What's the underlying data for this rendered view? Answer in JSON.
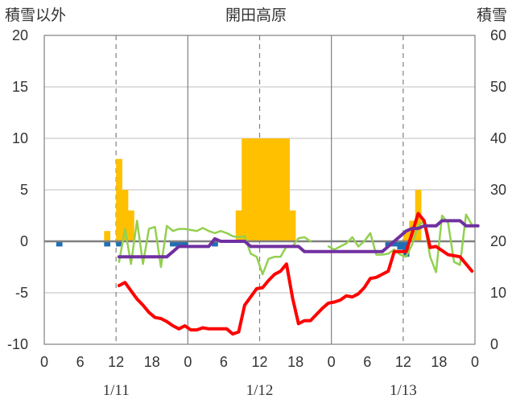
{
  "chart_data": {
    "type": "bar+line",
    "title": "開田高原",
    "left_axis": {
      "label": "積雪以外",
      "ylim": [
        -10,
        20
      ],
      "ticks": [
        "20",
        "15",
        "10",
        "5",
        "0",
        "-5",
        "-10"
      ]
    },
    "right_axis": {
      "label": "積雪",
      "ylim": [
        0,
        60
      ],
      "ticks": [
        "60",
        "50",
        "40",
        "30",
        "20",
        "10",
        "0"
      ]
    },
    "x_axis": {
      "hour_ticks": [
        "0",
        "6",
        "12",
        "18",
        "0",
        "6",
        "12",
        "18",
        "0",
        "6",
        "12",
        "18",
        "0"
      ],
      "date_labels": [
        {
          "text": "1/11",
          "hour": 12
        },
        {
          "text": "1/12",
          "hour": 36
        },
        {
          "text": "1/13",
          "hour": 60
        }
      ],
      "range_hours": [
        0,
        72
      ],
      "solid_lines_hours": [
        24,
        48
      ],
      "dashed_lines_hours": [
        12,
        36,
        60
      ]
    },
    "series": [
      {
        "kind": "bar",
        "axis": "left",
        "color": "#ffc000",
        "points": [
          [
            10,
            1
          ],
          [
            12,
            8
          ],
          [
            13,
            5
          ],
          [
            14,
            3
          ],
          [
            32,
            3
          ],
          [
            33,
            10
          ],
          [
            34,
            10
          ],
          [
            35,
            10
          ],
          [
            36,
            10
          ],
          [
            37,
            10
          ],
          [
            38,
            10
          ],
          [
            39,
            10
          ],
          [
            40,
            10
          ],
          [
            41,
            3
          ],
          [
            60,
            1
          ],
          [
            61,
            2
          ],
          [
            62,
            5
          ]
        ]
      },
      {
        "kind": "bar",
        "axis": "left",
        "color": "#1f6fb5",
        "points": [
          [
            2,
            -0.5
          ],
          [
            10,
            -0.5
          ],
          [
            12,
            -0.5
          ],
          [
            21,
            -0.5
          ],
          [
            22,
            -0.5
          ],
          [
            23,
            -0.5
          ],
          [
            28,
            -0.5
          ],
          [
            57,
            -0.5
          ],
          [
            58,
            -0.5
          ],
          [
            59,
            -0.8
          ],
          [
            60,
            -1.5
          ]
        ]
      },
      {
        "kind": "line",
        "axis": "left",
        "color": "#92d050",
        "width": 2.5,
        "points": [
          [
            12,
            -2
          ],
          [
            13,
            1.2
          ],
          [
            14,
            -2.2
          ],
          [
            15,
            2
          ],
          [
            16,
            -2.2
          ],
          [
            17,
            1.2
          ],
          [
            18,
            1.4
          ],
          [
            19,
            -2.5
          ],
          [
            20,
            1.5
          ],
          [
            21,
            1
          ],
          [
            22,
            1.2
          ],
          [
            23,
            1.2
          ],
          [
            24,
            1.1
          ],
          [
            25,
            1
          ],
          [
            26,
            1.3
          ],
          [
            27,
            1
          ],
          [
            28,
            0.8
          ],
          [
            29,
            1
          ],
          [
            30,
            0.8
          ],
          [
            31,
            0.5
          ],
          [
            32,
            0.4
          ],
          [
            33,
            0.5
          ],
          [
            34,
            -1.2
          ],
          [
            35,
            -1.5
          ],
          [
            36,
            -3.2
          ],
          [
            37,
            -1.7
          ],
          [
            38,
            -1.5
          ],
          [
            39,
            -1.5
          ],
          [
            40,
            -0.5
          ],
          [
            41,
            -0.5
          ],
          [
            42,
            0.3
          ],
          [
            43,
            0.4
          ],
          [
            44,
            0
          ],
          null,
          [
            47,
            -0.5
          ],
          [
            48,
            -0.8
          ],
          [
            49,
            -0.5
          ],
          [
            50,
            -0.2
          ],
          [
            51,
            0.4
          ],
          [
            52,
            -0.5
          ],
          [
            53,
            0
          ],
          [
            54,
            0.8
          ],
          [
            55,
            -1.3
          ],
          [
            56,
            -1.3
          ],
          [
            57,
            -1.2
          ],
          [
            58,
            -0.8
          ],
          [
            59,
            -1.3
          ],
          [
            60,
            -1.5
          ],
          [
            61,
            -0.3
          ],
          [
            62,
            1.5
          ],
          [
            63,
            2
          ],
          [
            64,
            -1.5
          ],
          [
            65,
            -3
          ],
          [
            66,
            2.5
          ],
          [
            67,
            1.8
          ],
          [
            68,
            -2
          ],
          [
            69,
            -2.3
          ],
          [
            70,
            2.6
          ],
          [
            71,
            1.6
          ]
        ]
      },
      {
        "kind": "line",
        "axis": "left",
        "color": "#ff0000",
        "width": 4,
        "points": [
          [
            12,
            -4.3
          ],
          [
            13,
            -4
          ],
          [
            14,
            -4.8
          ],
          [
            15,
            -5.6
          ],
          [
            16,
            -6.2
          ],
          [
            17,
            -6.9
          ],
          [
            18,
            -7.4
          ],
          [
            19,
            -7.5
          ],
          [
            20,
            -7.8
          ],
          [
            21,
            -8.2
          ],
          [
            22,
            -8.5
          ],
          [
            23,
            -8.2
          ],
          [
            24,
            -8.6
          ],
          [
            25,
            -8.6
          ],
          [
            26,
            -8.4
          ],
          [
            27,
            -8.5
          ],
          [
            28,
            -8.5
          ],
          [
            29,
            -8.5
          ],
          [
            30,
            -8.5
          ],
          [
            31,
            -9
          ],
          [
            32,
            -8.8
          ],
          [
            33,
            -6.2
          ],
          [
            34,
            -5.4
          ],
          [
            35,
            -4.6
          ],
          [
            36,
            -4.5
          ],
          [
            37,
            -3.8
          ],
          [
            38,
            -3.2
          ],
          [
            39,
            -2.9
          ],
          [
            40,
            -2.2
          ],
          [
            41,
            -5.5
          ],
          [
            42,
            -8
          ],
          [
            43,
            -7.7
          ],
          [
            44,
            -7.7
          ],
          [
            45,
            -7.1
          ],
          [
            46,
            -6.5
          ],
          [
            47,
            -6
          ],
          [
            48,
            -5.9
          ],
          [
            49,
            -5.7
          ],
          [
            50,
            -5.3
          ],
          [
            51,
            -5.4
          ],
          [
            52,
            -5.1
          ],
          [
            53,
            -4.5
          ],
          [
            54,
            -3.6
          ],
          [
            55,
            -3.5
          ],
          [
            56,
            -3.2
          ],
          [
            57,
            -2.9
          ],
          [
            58,
            -1
          ],
          [
            59,
            -1
          ],
          [
            60,
            -1
          ],
          [
            61,
            0.8
          ],
          [
            62,
            2.7
          ],
          [
            63,
            2
          ],
          [
            64,
            -0.6
          ],
          [
            65,
            -0.5
          ],
          [
            66,
            -0.9
          ],
          [
            67,
            -1.3
          ],
          [
            68,
            -1.4
          ],
          [
            69,
            -1.5
          ],
          [
            70,
            -2.2
          ],
          [
            71,
            -2.9
          ]
        ]
      },
      {
        "kind": "line",
        "axis": "right",
        "color": "#7030a0",
        "width": 4,
        "points": [
          [
            12,
            17
          ],
          [
            13,
            17
          ],
          [
            14,
            17
          ],
          [
            15,
            17
          ],
          [
            16,
            17
          ],
          [
            17,
            17
          ],
          [
            18,
            17
          ],
          [
            19,
            17
          ],
          [
            20,
            17
          ],
          [
            21,
            18
          ],
          [
            22,
            19
          ],
          [
            23,
            19
          ],
          [
            24,
            19
          ],
          [
            25,
            19
          ],
          [
            26,
            19
          ],
          [
            27,
            19
          ],
          [
            28,
            20.5
          ],
          [
            29,
            20
          ],
          [
            30,
            20
          ],
          [
            31,
            20
          ],
          [
            32,
            20
          ],
          [
            33,
            20
          ],
          [
            34,
            19
          ],
          [
            35,
            19
          ],
          [
            36,
            19
          ],
          [
            37,
            19
          ],
          [
            38,
            19
          ],
          [
            39,
            19
          ],
          [
            40,
            19
          ],
          [
            41,
            19
          ],
          [
            42,
            19
          ],
          [
            43,
            18
          ],
          [
            44,
            18
          ],
          [
            45,
            18
          ],
          [
            46,
            18
          ],
          [
            47,
            18
          ],
          [
            48,
            18
          ],
          [
            49,
            18
          ],
          [
            50,
            18
          ],
          [
            51,
            18
          ],
          [
            52,
            18
          ],
          [
            53,
            18
          ],
          [
            54,
            18
          ],
          [
            55,
            18
          ],
          [
            56,
            18
          ],
          [
            57,
            19
          ],
          [
            58,
            20
          ],
          [
            59,
            21
          ],
          [
            60,
            22
          ],
          [
            61,
            22.5
          ],
          [
            62,
            22.5
          ],
          [
            63,
            23
          ],
          [
            64,
            23
          ],
          [
            65,
            23
          ],
          [
            66,
            24
          ],
          [
            67,
            24
          ],
          [
            68,
            24
          ],
          [
            69,
            24
          ],
          [
            70,
            23
          ],
          [
            71,
            23
          ],
          [
            72,
            23
          ]
        ]
      }
    ]
  }
}
